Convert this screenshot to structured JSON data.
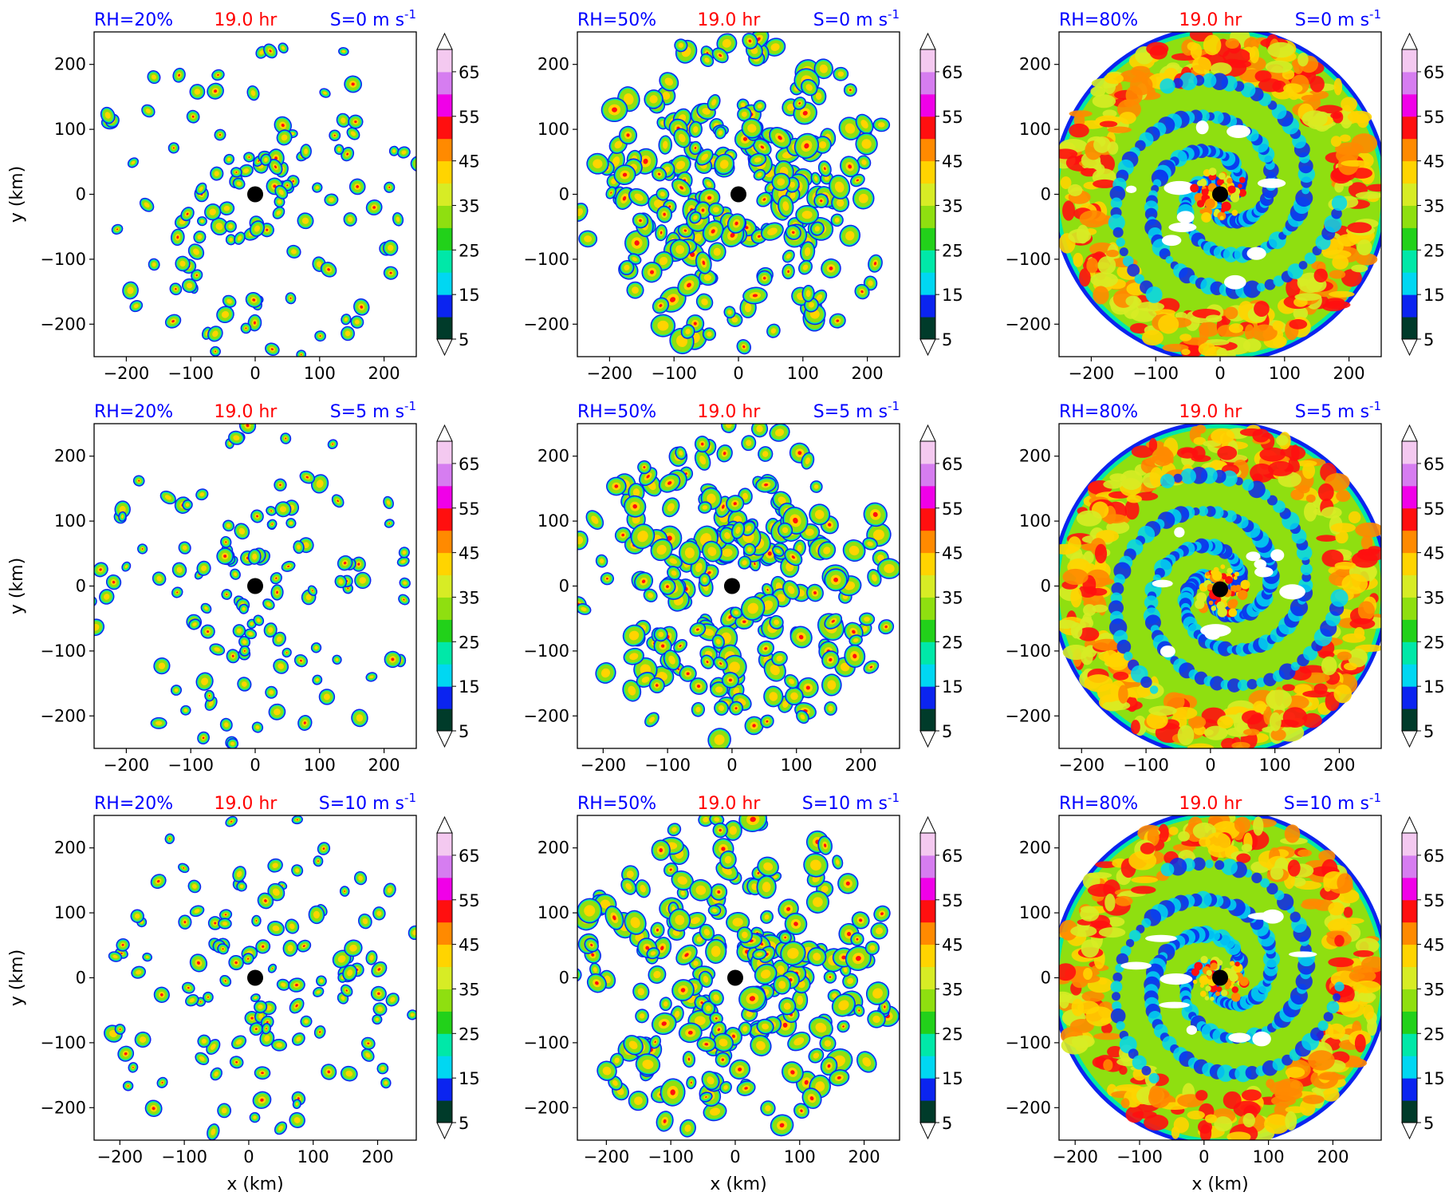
{
  "figure": {
    "xlabel": "x (km)",
    "ylabel": "y (km)",
    "rows": [
      {
        "shear": "S=0 m s",
        "shear_exp": "-1"
      },
      {
        "shear": "S=5 m s",
        "shear_exp": "-1"
      },
      {
        "shear": "S=10 m s",
        "shear_exp": "-1"
      }
    ],
    "cols": [
      {
        "rh": "RH=20%"
      },
      {
        "rh": "RH=50%"
      },
      {
        "rh": "RH=80%"
      }
    ],
    "time_label": "19.0 hr",
    "colors": {
      "title_blue": "#0000ff",
      "title_red": "#ff0000",
      "levels": [
        "#003b2a",
        "#0b24f0",
        "#00d7f2",
        "#00e8a8",
        "#22d11a",
        "#8fdf10",
        "#d7ec25",
        "#ffd400",
        "#ff8a00",
        "#ff0f0f",
        "#f000e8",
        "#d67df0",
        "#f4c9f0"
      ]
    }
  },
  "chart_data": [
    {
      "type": "heatmap",
      "panel": "RH=20%, S=0",
      "xlim": [
        -250,
        250
      ],
      "ylim": [
        -250,
        250
      ],
      "xticks": [
        -200,
        -100,
        0,
        100,
        200
      ],
      "yticks": [
        -200,
        -100,
        0,
        100,
        200
      ],
      "center": [
        0,
        0
      ],
      "coverage": "scattered cells",
      "colorbar_ticks": [
        5,
        15,
        25,
        35,
        45,
        55,
        65
      ]
    },
    {
      "type": "heatmap",
      "panel": "RH=50%, S=0",
      "xlim": [
        -250,
        250
      ],
      "ylim": [
        -250,
        250
      ],
      "xticks": [
        -200,
        -100,
        0,
        100,
        200
      ],
      "yticks": [
        -200,
        -100,
        0,
        100,
        200
      ],
      "center": [
        0,
        0
      ],
      "coverage": "ring of cells",
      "colorbar_ticks": [
        5,
        15,
        25,
        35,
        45,
        55,
        65
      ]
    },
    {
      "type": "heatmap",
      "panel": "RH=80%, S=0",
      "xlim": [
        -250,
        250
      ],
      "ylim": [
        -250,
        250
      ],
      "xticks": [
        -200,
        -100,
        0,
        100,
        200
      ],
      "yticks": [
        -200,
        -100,
        0,
        100,
        200
      ],
      "center": [
        0,
        0
      ],
      "coverage": "full spiral",
      "colorbar_ticks": [
        5,
        15,
        25,
        35,
        45,
        55,
        65
      ]
    },
    {
      "type": "heatmap",
      "panel": "RH=20%, S=5",
      "xlim": [
        -250,
        250
      ],
      "ylim": [
        -250,
        250
      ],
      "xticks": [
        -200,
        -100,
        0,
        100,
        200
      ],
      "yticks": [
        -200,
        -100,
        0,
        100,
        200
      ],
      "center": [
        0,
        0
      ],
      "coverage": "scattered cells",
      "colorbar_ticks": [
        5,
        15,
        25,
        35,
        45,
        55,
        65
      ]
    },
    {
      "type": "heatmap",
      "panel": "RH=50%, S=5",
      "xlim": [
        -240,
        260
      ],
      "ylim": [
        -250,
        250
      ],
      "xticks": [
        -200,
        -100,
        0,
        100,
        200
      ],
      "yticks": [
        -200,
        -100,
        0,
        100,
        200
      ],
      "center": [
        0,
        0
      ],
      "coverage": "ring of cells",
      "colorbar_ticks": [
        5,
        15,
        25,
        35,
        45,
        55,
        65
      ]
    },
    {
      "type": "heatmap",
      "panel": "RH=80%, S=5",
      "xlim": [
        -235,
        265
      ],
      "ylim": [
        -250,
        250
      ],
      "xticks": [
        -200,
        -100,
        0,
        100,
        200
      ],
      "yticks": [
        -200,
        -100,
        0,
        100,
        200
      ],
      "center": [
        15,
        -5
      ],
      "coverage": "full spiral",
      "colorbar_ticks": [
        5,
        15,
        25,
        35,
        45,
        55,
        65
      ]
    },
    {
      "type": "heatmap",
      "panel": "RH=20%, S=10",
      "xlim": [
        -240,
        260
      ],
      "ylim": [
        -250,
        250
      ],
      "xticks": [
        -200,
        -100,
        0,
        100,
        200
      ],
      "yticks": [
        -200,
        -100,
        0,
        100,
        200
      ],
      "center": [
        10,
        0
      ],
      "coverage": "scattered cells",
      "colorbar_ticks": [
        5,
        15,
        25,
        35,
        45,
        55,
        65
      ]
    },
    {
      "type": "heatmap",
      "panel": "RH=50%, S=10",
      "xlim": [
        -245,
        255
      ],
      "ylim": [
        -250,
        250
      ],
      "xticks": [
        -200,
        -100,
        0,
        100,
        200
      ],
      "yticks": [
        -200,
        -100,
        0,
        100,
        200
      ],
      "center": [
        0,
        0
      ],
      "coverage": "ring of cells",
      "colorbar_ticks": [
        5,
        15,
        25,
        35,
        45,
        55,
        65
      ]
    },
    {
      "type": "heatmap",
      "panel": "RH=80%, S=10",
      "xlim": [
        -225,
        275
      ],
      "ylim": [
        -250,
        250
      ],
      "xticks": [
        -200,
        -100,
        0,
        100,
        200
      ],
      "yticks": [
        -200,
        -100,
        0,
        100,
        200
      ],
      "center": [
        25,
        0
      ],
      "coverage": "full spiral",
      "colorbar_ticks": [
        5,
        15,
        25,
        35,
        45,
        55,
        65
      ]
    }
  ]
}
